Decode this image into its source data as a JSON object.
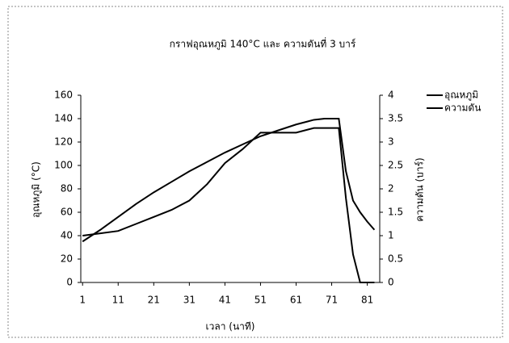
{
  "chart_data": {
    "type": "line",
    "title": "กราฟอุณหภูมิ 140°C และ ความดันที่ 3 บาร์",
    "x_label": "เวลา (นาที)",
    "y_label": "อุณหภูมิ (°C)",
    "y2_label": "ความดัน (บาร์)",
    "x": [
      1,
      6,
      11,
      16,
      21,
      26,
      31,
      36,
      41,
      46,
      51,
      56,
      61,
      66,
      69,
      73,
      75,
      77,
      79,
      81,
      83
    ],
    "series": [
      {
        "name": "อุณหภูมิ",
        "color": "#000000",
        "values": [
          35,
          45,
          56,
          67,
          77,
          86,
          95,
          103,
          111,
          118,
          125,
          130,
          135,
          139,
          140,
          140,
          95,
          70,
          60,
          52,
          45
        ]
      },
      {
        "name": "ความดัน",
        "color": "#000000",
        "axis": "y2",
        "values": [
          1.0,
          1.05,
          1.1,
          1.25,
          1.4,
          1.55,
          1.75,
          2.1,
          2.55,
          2.85,
          3.2,
          3.2,
          3.2,
          3.3,
          3.3,
          3.3,
          1.8,
          0.6,
          0,
          0,
          0
        ]
      }
    ],
    "xlim": [
      0.5,
      84.5
    ],
    "xticks": [
      1,
      11,
      21,
      31,
      41,
      51,
      61,
      71,
      81
    ],
    "ylim": [
      0,
      160
    ],
    "yticks": [
      0,
      20,
      40,
      60,
      80,
      100,
      120,
      140,
      160
    ],
    "y2lim": [
      0,
      4
    ],
    "y2ticks": [
      0,
      0.5,
      1,
      1.5,
      2,
      2.5,
      3,
      3.5,
      4
    ],
    "legend": "right"
  }
}
